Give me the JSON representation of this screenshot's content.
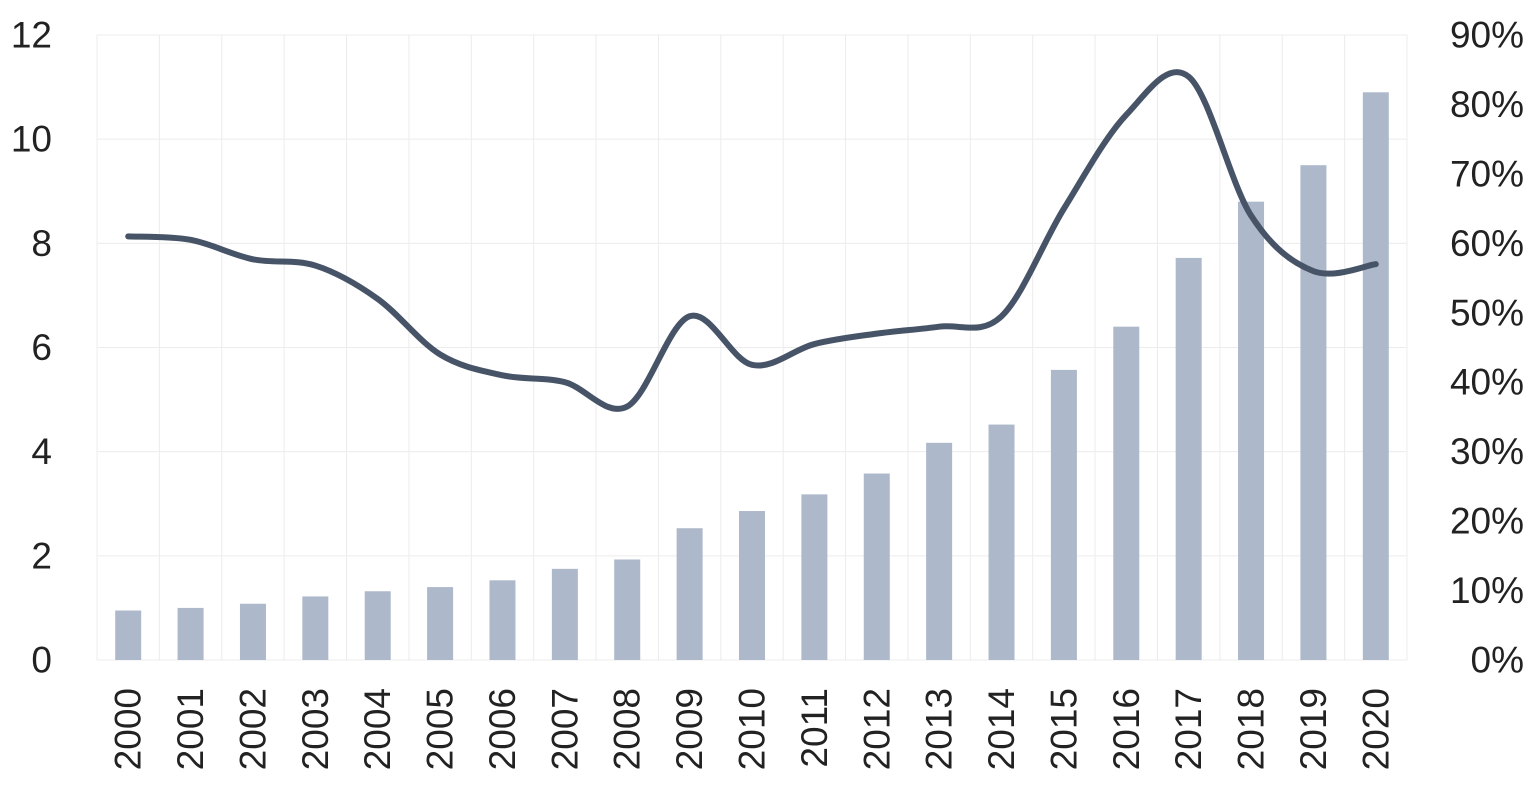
{
  "chart_data": {
    "type": "bar",
    "categories": [
      "2000",
      "2001",
      "2002",
      "2003",
      "2004",
      "2005",
      "2006",
      "2007",
      "2008",
      "2009",
      "2010",
      "2011",
      "2012",
      "2013",
      "2014",
      "2015",
      "2016",
      "2017",
      "2018",
      "2019",
      "2020"
    ],
    "series": [
      {
        "type": "bar",
        "axis": "left",
        "color": "#adb8ca",
        "values": [
          0.95,
          1.0,
          1.08,
          1.22,
          1.32,
          1.4,
          1.53,
          1.75,
          1.93,
          2.53,
          2.86,
          3.18,
          3.58,
          4.17,
          4.52,
          5.57,
          6.4,
          7.72,
          8.8,
          9.5,
          10.9
        ]
      },
      {
        "type": "line",
        "axis": "right",
        "color": "#475468",
        "smooth": true,
        "values": [
          0.61,
          0.605,
          0.577,
          0.568,
          0.52,
          0.44,
          0.41,
          0.4,
          0.365,
          0.495,
          0.425,
          0.455,
          0.47,
          0.48,
          0.495,
          0.65,
          0.785,
          0.84,
          0.64,
          0.56,
          0.57
        ]
      }
    ],
    "y_left": {
      "min": 0,
      "max": 12,
      "ticks": [
        "0",
        "2",
        "4",
        "6",
        "8",
        "10",
        "12"
      ]
    },
    "y_right": {
      "min": 0,
      "max": 0.9,
      "ticks": [
        "0%",
        "10%",
        "20%",
        "30%",
        "40%",
        "50%",
        "60%",
        "70%",
        "80%",
        "90%"
      ]
    },
    "grid": true,
    "legend": "none",
    "title": "",
    "xlabel": "",
    "ylabel": ""
  }
}
